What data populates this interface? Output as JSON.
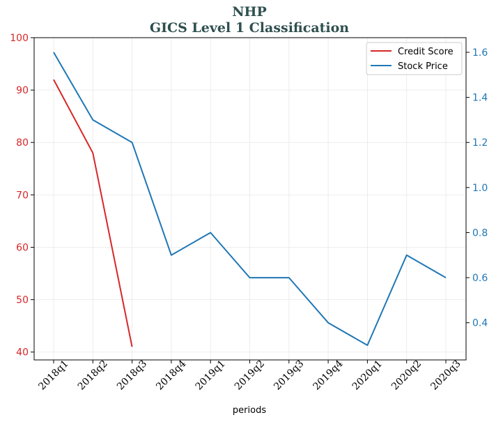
{
  "chart_data": {
    "type": "line",
    "title": "NHP",
    "subtitle": "GICS Level 1 Classification",
    "xlabel": "periods",
    "categories": [
      "2018q1",
      "2018q2",
      "2018q3",
      "2018q4",
      "2019q1",
      "2019q2",
      "2019q3",
      "2019q4",
      "2020q1",
      "2020q2",
      "2020q3"
    ],
    "left_axis": {
      "ylim": [
        38.5,
        100
      ],
      "ticks": [
        40,
        50,
        60,
        70,
        80,
        90,
        100
      ],
      "color": "#d62728"
    },
    "right_axis": {
      "ylim": [
        0.235,
        1.665
      ],
      "ticks": [
        0.4,
        0.6,
        0.8,
        1.0,
        1.2,
        1.4,
        1.6
      ],
      "color": "#1f77b4"
    },
    "grid": true,
    "legend_position": "top-right",
    "series": [
      {
        "name": "Credit Score",
        "axis": "left",
        "color": "#d62728",
        "values": [
          92,
          78,
          41,
          null,
          null,
          null,
          null,
          null,
          null,
          null,
          null
        ]
      },
      {
        "name": "Stock Price",
        "axis": "right",
        "color": "#1f77b4",
        "values": [
          1.6,
          1.3,
          1.2,
          0.7,
          0.8,
          0.6,
          0.6,
          0.4,
          0.3,
          0.7,
          0.6
        ]
      }
    ]
  }
}
